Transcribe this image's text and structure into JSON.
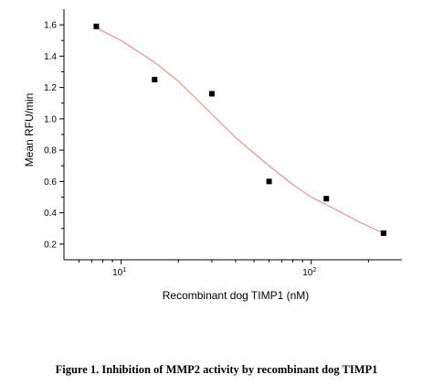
{
  "chart_data": {
    "type": "scatter",
    "xlabel": "Recombinant dog TIMP1 (nM)",
    "ylabel": "Mean RFU/min",
    "x_scale": "log",
    "xlim": [
      5,
      300
    ],
    "ylim": [
      0.1,
      1.7
    ],
    "x_ticks": [
      {
        "value": 10,
        "base": "10",
        "exp": "1"
      },
      {
        "value": 100,
        "base": "10",
        "exp": "2"
      }
    ],
    "y_ticks": [
      "0.2",
      "0.4",
      "0.6",
      "0.8",
      "1.0",
      "1.2",
      "1.4",
      "1.6"
    ],
    "grid": false,
    "series": [
      {
        "marker": "square",
        "color": "#000000",
        "points": [
          {
            "x": 7.4,
            "y": 1.59
          },
          {
            "x": 15,
            "y": 1.25
          },
          {
            "x": 30,
            "y": 1.16
          },
          {
            "x": 60,
            "y": 0.6
          },
          {
            "x": 120,
            "y": 0.49
          },
          {
            "x": 240,
            "y": 0.27
          }
        ]
      }
    ],
    "fit_curve": {
      "color": "#f08080",
      "points": [
        {
          "x": 7.4,
          "y": 1.58
        },
        {
          "x": 10,
          "y": 1.5
        },
        {
          "x": 15,
          "y": 1.36
        },
        {
          "x": 20,
          "y": 1.24
        },
        {
          "x": 30,
          "y": 1.03
        },
        {
          "x": 40,
          "y": 0.88
        },
        {
          "x": 60,
          "y": 0.7
        },
        {
          "x": 80,
          "y": 0.58
        },
        {
          "x": 100,
          "y": 0.5
        },
        {
          "x": 140,
          "y": 0.41
        },
        {
          "x": 180,
          "y": 0.34
        },
        {
          "x": 240,
          "y": 0.27
        }
      ]
    }
  },
  "caption": "Figure 1. Inhibition of MMP2 activity by recombinant dog TIMP1"
}
